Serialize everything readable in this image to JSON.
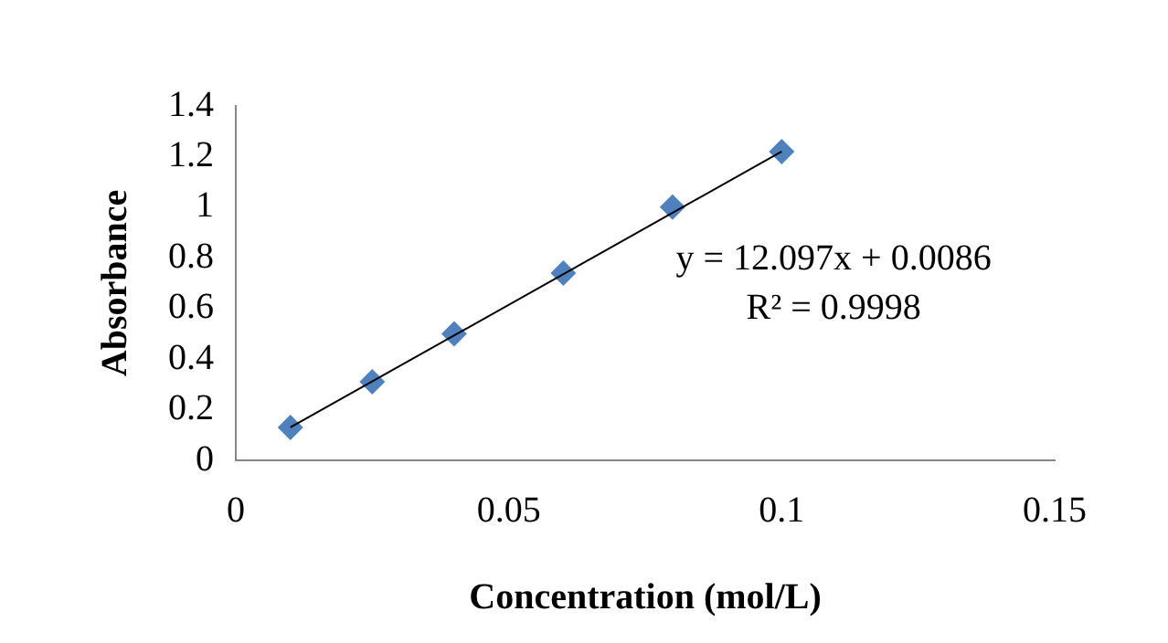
{
  "chart_data": {
    "type": "scatter",
    "xlabel": "Concentration (mol/L)",
    "ylabel": "Absorbance",
    "x": [
      0.01,
      0.025,
      0.04,
      0.06,
      0.08,
      0.1
    ],
    "series": [
      {
        "color": "#4f81bd",
        "values": [
          0.13,
          0.31,
          0.5,
          0.74,
          1.0,
          1.22
        ],
        "marker": "diamond"
      },
      {
        "type": "line",
        "color": "#000000",
        "x": [
          0.01,
          0.1
        ],
        "values": [
          0.13,
          1.22
        ],
        "marker": "none"
      }
    ],
    "xlim": [
      0,
      0.15
    ],
    "xticks": [
      0,
      0.05,
      0.1,
      0.15
    ],
    "ylim": [
      0,
      1.4
    ],
    "yticks": [
      0,
      0.2,
      0.4,
      0.6,
      0.8,
      1,
      1.2,
      1.4
    ],
    "grid": false,
    "legend": false,
    "annotations": [
      "y = 12.097x + 0.0086",
      "R² = 0.9998"
    ]
  }
}
